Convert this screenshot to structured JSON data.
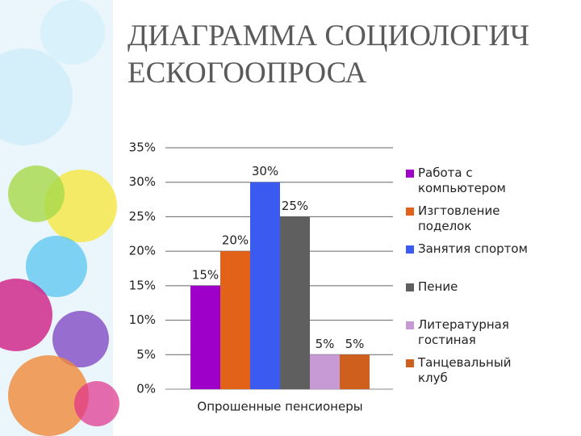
{
  "chart_data": {
    "type": "bar",
    "title": "ДИАГРАММА СОЦИОЛОГИЧЕСКОГООПРОСА",
    "categories": [
      "Опрошенные пенсионеры"
    ],
    "series": [
      {
        "name": "Работа с компьютером",
        "color": "#9f00c9",
        "values": [
          15
        ],
        "value_labels": [
          "15%"
        ]
      },
      {
        "name": "Изгтовление поделок",
        "color": "#e2621a",
        "values": [
          20
        ],
        "value_labels": [
          "20%"
        ]
      },
      {
        "name": "Занятия спортом",
        "color": "#3a5af0",
        "values": [
          30
        ],
        "value_labels": [
          "30%"
        ]
      },
      {
        "name": "Пение",
        "color": "#5f5f5f",
        "values": [
          25
        ],
        "value_labels": [
          "25%"
        ]
      },
      {
        "name": "Литературная гостиная",
        "color": "#c79ad6",
        "values": [
          5
        ],
        "value_labels": [
          "5%"
        ]
      },
      {
        "name": "Танцевальный клуб",
        "color": "#cf5f1c",
        "values": [
          5
        ],
        "value_labels": [
          "5%"
        ]
      }
    ],
    "ylim": [
      0,
      35
    ],
    "yticks": [
      {
        "value": 0,
        "label": "0%"
      },
      {
        "value": 5,
        "label": "5%"
      },
      {
        "value": 10,
        "label": "10%"
      },
      {
        "value": 15,
        "label": "15%"
      },
      {
        "value": 20,
        "label": "20%"
      },
      {
        "value": 25,
        "label": "25%"
      },
      {
        "value": 30,
        "label": "30%"
      },
      {
        "value": 35,
        "label": "35%"
      }
    ],
    "grid": true,
    "legend": "right"
  }
}
